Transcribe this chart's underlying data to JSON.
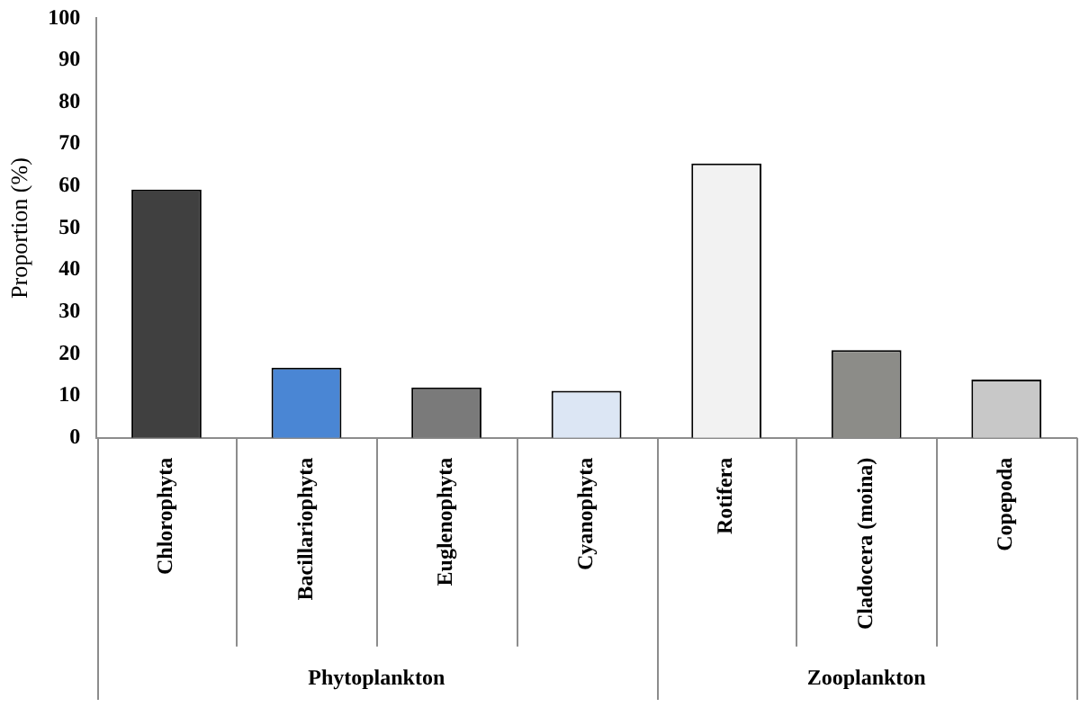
{
  "chart_data": {
    "type": "bar",
    "ylabel": "Proportion (%)",
    "categories": [
      "Chlorophyta",
      "Bacillariophyta",
      "Euglenophyta",
      "Cyanophyta",
      "Rotifera",
      "Cladocera (moina)",
      "Copepoda"
    ],
    "values": [
      59.2,
      16.7,
      12.0,
      11.2,
      65.4,
      20.9,
      13.9
    ],
    "colors": [
      "#404040",
      "#4a86d4",
      "#7a7a7a",
      "#dce6f4",
      "#f2f2f2",
      "#8c8c88",
      "#c8c8c8"
    ],
    "ylim": [
      0,
      100
    ],
    "yticks": [
      0,
      10,
      20,
      30,
      40,
      50,
      60,
      70,
      80,
      90,
      100
    ],
    "grid": false,
    "legend": false,
    "annotations": [
      "Phytoplankton",
      "Zooplankton"
    ]
  }
}
